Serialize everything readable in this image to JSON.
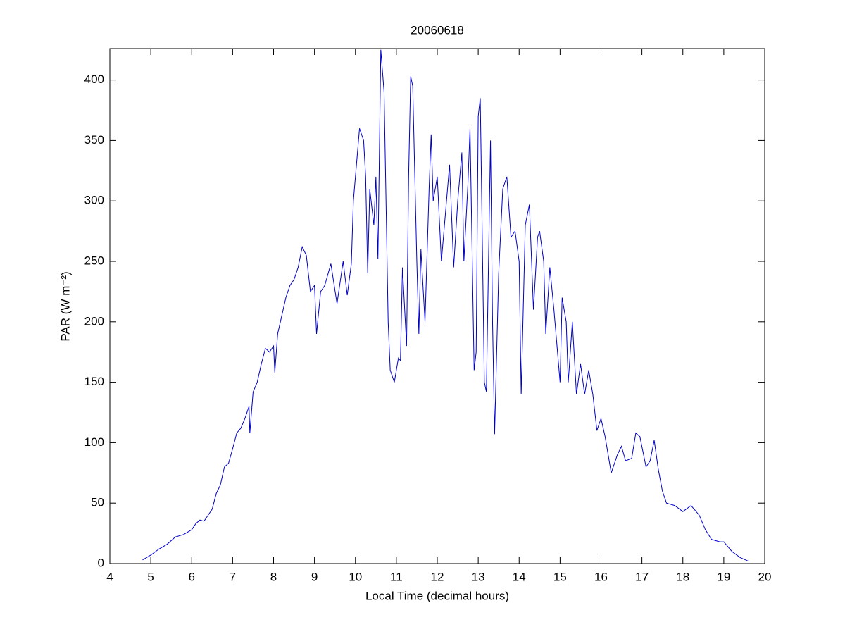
{
  "chart_data": {
    "type": "line",
    "title": "20060618",
    "xlabel": "Local Time (decimal hours)",
    "ylabel": "PAR (W m⁻²)",
    "xlim": [
      4,
      20
    ],
    "ylim": [
      0,
      426
    ],
    "xticks": [
      4,
      5,
      6,
      7,
      8,
      9,
      10,
      11,
      12,
      13,
      14,
      15,
      16,
      17,
      18,
      19,
      20
    ],
    "yticks": [
      0,
      50,
      100,
      150,
      200,
      250,
      300,
      350,
      400
    ],
    "grid": false,
    "x": [
      4.8,
      5.0,
      5.2,
      5.4,
      5.6,
      5.8,
      6.0,
      6.1,
      6.2,
      6.3,
      6.4,
      6.5,
      6.6,
      6.7,
      6.8,
      6.9,
      7.0,
      7.1,
      7.2,
      7.3,
      7.4,
      7.42,
      7.5,
      7.6,
      7.7,
      7.8,
      7.9,
      8.0,
      8.03,
      8.1,
      8.2,
      8.3,
      8.4,
      8.5,
      8.6,
      8.7,
      8.8,
      8.9,
      9.0,
      9.05,
      9.15,
      9.25,
      9.4,
      9.55,
      9.7,
      9.8,
      9.9,
      9.95,
      10.05,
      10.1,
      10.2,
      10.25,
      10.3,
      10.35,
      10.45,
      10.5,
      10.55,
      10.62,
      10.7,
      10.8,
      10.85,
      10.95,
      11.05,
      11.1,
      11.15,
      11.25,
      11.3,
      11.35,
      11.4,
      11.5,
      11.55,
      11.6,
      11.7,
      11.8,
      11.85,
      11.9,
      12.0,
      12.1,
      12.2,
      12.3,
      12.4,
      12.5,
      12.6,
      12.65,
      12.75,
      12.8,
      12.9,
      12.95,
      13.0,
      13.05,
      13.15,
      13.2,
      13.3,
      13.35,
      13.4,
      13.5,
      13.6,
      13.7,
      13.8,
      13.9,
      14.0,
      14.05,
      14.15,
      14.25,
      14.35,
      14.45,
      14.5,
      14.6,
      14.65,
      14.75,
      14.85,
      15.0,
      15.05,
      15.15,
      15.2,
      15.3,
      15.4,
      15.5,
      15.6,
      15.7,
      15.8,
      15.9,
      16.0,
      16.1,
      16.25,
      16.4,
      16.5,
      16.6,
      16.75,
      16.85,
      16.95,
      17.1,
      17.2,
      17.3,
      17.4,
      17.5,
      17.6,
      17.8,
      18.0,
      18.2,
      18.4,
      18.55,
      18.7,
      18.9,
      19.0,
      19.2,
      19.4,
      19.6
    ],
    "series": [
      {
        "color": "#0000c8",
        "values": [
          3,
          7,
          12,
          16,
          22,
          24,
          28,
          33,
          36,
          35,
          40,
          45,
          58,
          65,
          80,
          83,
          95,
          108,
          112,
          120,
          130,
          108,
          142,
          150,
          165,
          178,
          175,
          180,
          158,
          190,
          205,
          220,
          230,
          235,
          245,
          262,
          255,
          225,
          230,
          190,
          225,
          230,
          248,
          215,
          250,
          222,
          248,
          300,
          340,
          360,
          350,
          320,
          240,
          310,
          280,
          320,
          252,
          425,
          390,
          200,
          160,
          150,
          170,
          168,
          245,
          180,
          320,
          403,
          395,
          250,
          190,
          260,
          200,
          310,
          355,
          300,
          320,
          250,
          290,
          330,
          245,
          300,
          340,
          250,
          315,
          360,
          160,
          175,
          370,
          385,
          150,
          142,
          350,
          200,
          107,
          240,
          310,
          320,
          270,
          275,
          250,
          140,
          280,
          297,
          210,
          270,
          275,
          250,
          190,
          245,
          210,
          150,
          220,
          200,
          150,
          200,
          140,
          165,
          140,
          160,
          140,
          110,
          120,
          105,
          75,
          90,
          97,
          85,
          87,
          108,
          105,
          80,
          85,
          102,
          78,
          60,
          50,
          48,
          43,
          48,
          40,
          28,
          20,
          18,
          18,
          10,
          5,
          2
        ]
      }
    ]
  }
}
